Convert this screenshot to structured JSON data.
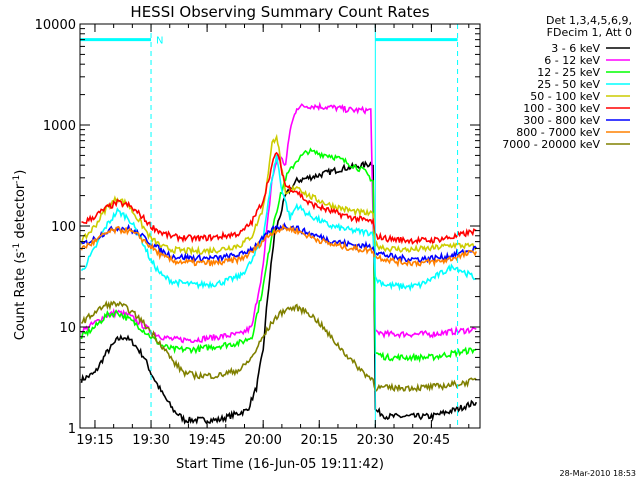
{
  "chart_data": {
    "type": "line",
    "title": "HESSI Observing Summary Count Rates",
    "xlabel": "Start Time (16-Jun-05 19:11:42)",
    "ylabel_pre": "Count Rate (s",
    "ylabel_sup": "-1",
    "ylabel_post": " detector",
    "ylabel_sup2": "-1",
    "ylabel_end": ")",
    "yscale": "log",
    "ylim": [
      1,
      10000
    ],
    "xlim": [
      19.1833,
      20.9667
    ],
    "xticks": [
      {
        "t": 19.25,
        "label": "19:15"
      },
      {
        "t": 19.5,
        "label": "19:30"
      },
      {
        "t": 19.75,
        "label": "19:45"
      },
      {
        "t": 20.0,
        "label": "20:00"
      },
      {
        "t": 20.25,
        "label": "20:15"
      },
      {
        "t": 20.5,
        "label": "20:30"
      },
      {
        "t": 20.75,
        "label": "20:45"
      }
    ],
    "yticks": [
      {
        "v": 1,
        "label": "1"
      },
      {
        "v": 10,
        "label": "10"
      },
      {
        "v": 100,
        "label": "100"
      },
      {
        "v": 1000,
        "label": "1000"
      },
      {
        "v": 10000,
        "label": "10000"
      }
    ],
    "legend_header": [
      "Det 1,3,4,5,6,9,",
      "FDecim 1, Att 0"
    ],
    "legend_placement": "right",
    "timestamp": "28-Mar-2010 18:53",
    "flags": [
      {
        "label": "N",
        "segments": [
          [
            19.1833,
            19.5
          ],
          [
            20.5,
            20.8667
          ]
        ],
        "level": 7000,
        "color": "#00ffff"
      }
    ],
    "vlines": [
      {
        "t": 19.1833,
        "color": "#00ffff",
        "dash": false
      },
      {
        "t": 19.5,
        "color": "#00ffff",
        "dash": true
      },
      {
        "t": 20.5,
        "color": "#00ffff",
        "dash": false
      },
      {
        "t": 20.8667,
        "color": "#00ffff",
        "dash": true
      }
    ],
    "series": [
      {
        "name": "3 - 6 keV",
        "color": "#000000",
        "x": [
          19.19,
          19.25,
          19.3,
          19.35,
          19.38,
          19.42,
          19.47,
          19.5,
          19.55,
          19.6,
          19.65,
          19.8,
          19.93,
          19.97,
          20.0,
          20.02,
          20.05,
          20.1,
          20.15,
          20.25,
          20.35,
          20.45,
          20.49,
          20.5,
          20.55,
          20.65,
          20.75,
          20.85,
          20.95
        ],
        "y": [
          3,
          3.5,
          5.5,
          7.5,
          8,
          7,
          5,
          3.5,
          2.2,
          1.5,
          1.2,
          1.2,
          1.5,
          2.5,
          6,
          20,
          80,
          200,
          280,
          320,
          370,
          400,
          420,
          1.5,
          1.3,
          1.3,
          1.3,
          1.5,
          1.8
        ]
      },
      {
        "name": "6 - 12 keV",
        "color": "#ff00ff",
        "x": [
          19.19,
          19.25,
          19.3,
          19.35,
          19.4,
          19.45,
          19.5,
          19.55,
          19.6,
          19.7,
          19.8,
          19.9,
          19.95,
          20.0,
          20.04,
          20.07,
          20.1,
          20.12,
          20.15,
          20.2,
          20.3,
          20.4,
          20.48,
          20.5,
          20.55,
          20.65,
          20.75,
          20.85,
          20.95
        ],
        "y": [
          9,
          11,
          13,
          14,
          13,
          11,
          9,
          8,
          7.5,
          7.5,
          8,
          8.5,
          10,
          40,
          300,
          500,
          400,
          900,
          1500,
          1550,
          1500,
          1400,
          1400,
          9,
          8.5,
          8.5,
          8.5,
          9,
          9.5
        ]
      },
      {
        "name": "12 - 25 keV",
        "color": "#00ff00",
        "x": [
          19.19,
          19.25,
          19.3,
          19.35,
          19.4,
          19.45,
          19.5,
          19.55,
          19.6,
          19.7,
          19.8,
          19.9,
          19.95,
          20.0,
          20.05,
          20.1,
          20.15,
          20.2,
          20.25,
          20.3,
          20.35,
          20.4,
          20.45,
          20.49,
          20.5,
          20.55,
          20.65,
          20.75,
          20.85,
          20.95
        ],
        "y": [
          8,
          10,
          13,
          14,
          12,
          10,
          8,
          6.5,
          6,
          6,
          6.5,
          7,
          8,
          25,
          120,
          300,
          450,
          550,
          520,
          500,
          450,
          400,
          350,
          280,
          5.5,
          5,
          5,
          5,
          5.5,
          6
        ]
      },
      {
        "name": "25 - 50 keV",
        "color": "#00ffff",
        "x": [
          19.19,
          19.25,
          19.3,
          19.35,
          19.4,
          19.45,
          19.5,
          19.55,
          19.6,
          19.7,
          19.8,
          19.9,
          19.95,
          20.0,
          20.04,
          20.06,
          20.08,
          20.12,
          20.15,
          20.2,
          20.3,
          20.4,
          20.49,
          20.5,
          20.55,
          20.65,
          20.7,
          20.75,
          20.85,
          20.95
        ],
        "y": [
          35,
          60,
          100,
          140,
          120,
          80,
          45,
          32,
          28,
          26,
          27,
          32,
          45,
          80,
          300,
          500,
          250,
          120,
          160,
          130,
          100,
          90,
          85,
          30,
          26,
          25,
          26,
          30,
          40,
          30
        ]
      },
      {
        "name": "50 - 100 keV",
        "color": "#cccc00",
        "x": [
          19.19,
          19.25,
          19.3,
          19.35,
          19.4,
          19.45,
          19.5,
          19.55,
          19.6,
          19.7,
          19.8,
          19.9,
          19.95,
          20.0,
          20.04,
          20.06,
          20.08,
          20.1,
          20.15,
          20.2,
          20.3,
          20.4,
          20.49,
          20.5,
          20.55,
          20.65,
          20.75,
          20.85,
          20.95
        ],
        "y": [
          70,
          100,
          150,
          190,
          160,
          110,
          75,
          62,
          58,
          56,
          58,
          65,
          80,
          150,
          650,
          800,
          400,
          200,
          250,
          200,
          160,
          140,
          130,
          65,
          60,
          58,
          60,
          65,
          62
        ]
      },
      {
        "name": "100 - 300 keV",
        "color": "#ff0000",
        "x": [
          19.19,
          19.25,
          19.3,
          19.35,
          19.4,
          19.45,
          19.5,
          19.55,
          19.6,
          19.7,
          19.8,
          19.9,
          19.95,
          20.0,
          20.04,
          20.06,
          20.08,
          20.1,
          20.15,
          20.2,
          20.3,
          20.4,
          20.49,
          20.5,
          20.55,
          20.65,
          20.75,
          20.85,
          20.95
        ],
        "y": [
          105,
          125,
          150,
          170,
          160,
          130,
          100,
          85,
          78,
          75,
          78,
          85,
          110,
          180,
          400,
          550,
          380,
          250,
          220,
          170,
          140,
          120,
          110,
          80,
          75,
          72,
          72,
          78,
          90
        ]
      },
      {
        "name": "300 - 800 keV",
        "color": "#0000ff",
        "x": [
          19.19,
          19.25,
          19.3,
          19.35,
          19.4,
          19.45,
          19.5,
          19.55,
          19.6,
          19.7,
          19.8,
          19.9,
          19.95,
          20.0,
          20.05,
          20.1,
          20.15,
          20.2,
          20.3,
          20.4,
          20.49,
          20.5,
          20.6,
          20.7,
          20.8,
          20.9,
          20.95
        ],
        "y": [
          65,
          75,
          88,
          96,
          94,
          82,
          68,
          56,
          50,
          48,
          48,
          52,
          60,
          75,
          95,
          100,
          95,
          85,
          72,
          65,
          62,
          55,
          48,
          47,
          49,
          55,
          60
        ]
      },
      {
        "name": "800 - 7000 keV",
        "color": "#ff8000",
        "x": [
          19.19,
          19.25,
          19.3,
          19.35,
          19.4,
          19.45,
          19.5,
          19.55,
          19.6,
          19.7,
          19.8,
          19.9,
          19.95,
          20.0,
          20.05,
          20.1,
          20.15,
          20.2,
          20.3,
          20.4,
          20.49,
          20.5,
          20.6,
          20.7,
          20.8,
          20.9,
          20.95
        ],
        "y": [
          60,
          70,
          85,
          92,
          90,
          78,
          62,
          50,
          45,
          43,
          43,
          47,
          55,
          72,
          90,
          95,
          90,
          80,
          66,
          60,
          57,
          50,
          44,
          43,
          45,
          52,
          56
        ]
      },
      {
        "name": "7000 - 20000 keV",
        "color": "#808000",
        "x": [
          19.19,
          19.25,
          19.3,
          19.35,
          19.4,
          19.45,
          19.5,
          19.55,
          19.6,
          19.65,
          19.7,
          19.8,
          19.9,
          19.95,
          20.0,
          20.05,
          20.1,
          20.15,
          20.2,
          20.25,
          20.3,
          20.35,
          20.4,
          20.45,
          20.49,
          20.5,
          20.6,
          20.7,
          20.8,
          20.9,
          20.95
        ],
        "y": [
          11,
          14,
          16.5,
          17,
          15,
          12,
          9,
          6.5,
          4.5,
          3.5,
          3.3,
          3.3,
          3.8,
          5,
          8,
          12,
          15,
          15.5,
          14,
          11,
          8,
          6,
          4.5,
          3.5,
          3,
          2.5,
          2.5,
          2.5,
          2.6,
          2.8,
          3
        ]
      }
    ]
  }
}
